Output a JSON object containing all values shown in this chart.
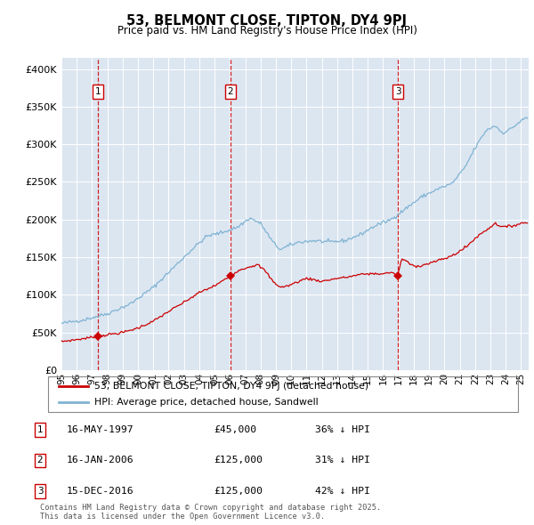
{
  "title": "53, BELMONT CLOSE, TIPTON, DY4 9PJ",
  "subtitle": "Price paid vs. HM Land Registry's House Price Index (HPI)",
  "background_color": "#dce6f1",
  "plot_bg_color": "#dce6f1",
  "hpi_color": "#7fb3d3",
  "price_color": "#cc0000",
  "dashed_line_color": "#cc0000",
  "yticks": [
    0,
    50000,
    100000,
    150000,
    200000,
    250000,
    300000,
    350000,
    400000
  ],
  "sales": [
    {
      "label": "1",
      "date": 1997.37,
      "price": 45000
    },
    {
      "label": "2",
      "date": 2006.04,
      "price": 125000
    },
    {
      "label": "3",
      "date": 2016.96,
      "price": 125000
    }
  ],
  "legend_label1": "53, BELMONT CLOSE, TIPTON, DY4 9PJ (detached house)",
  "legend_label2": "HPI: Average price, detached house, Sandwell",
  "footer": "Contains HM Land Registry data © Crown copyright and database right 2025.\nThis data is licensed under the Open Government Licence v3.0.",
  "xlim_start": 1995.0,
  "xlim_end": 2025.5,
  "table_rows": [
    [
      "1",
      "16-MAY-1997",
      "£45,000",
      "36% ↓ HPI"
    ],
    [
      "2",
      "16-JAN-2006",
      "£125,000",
      "31% ↓ HPI"
    ],
    [
      "3",
      "15-DEC-2016",
      "£125,000",
      "42% ↓ HPI"
    ]
  ]
}
